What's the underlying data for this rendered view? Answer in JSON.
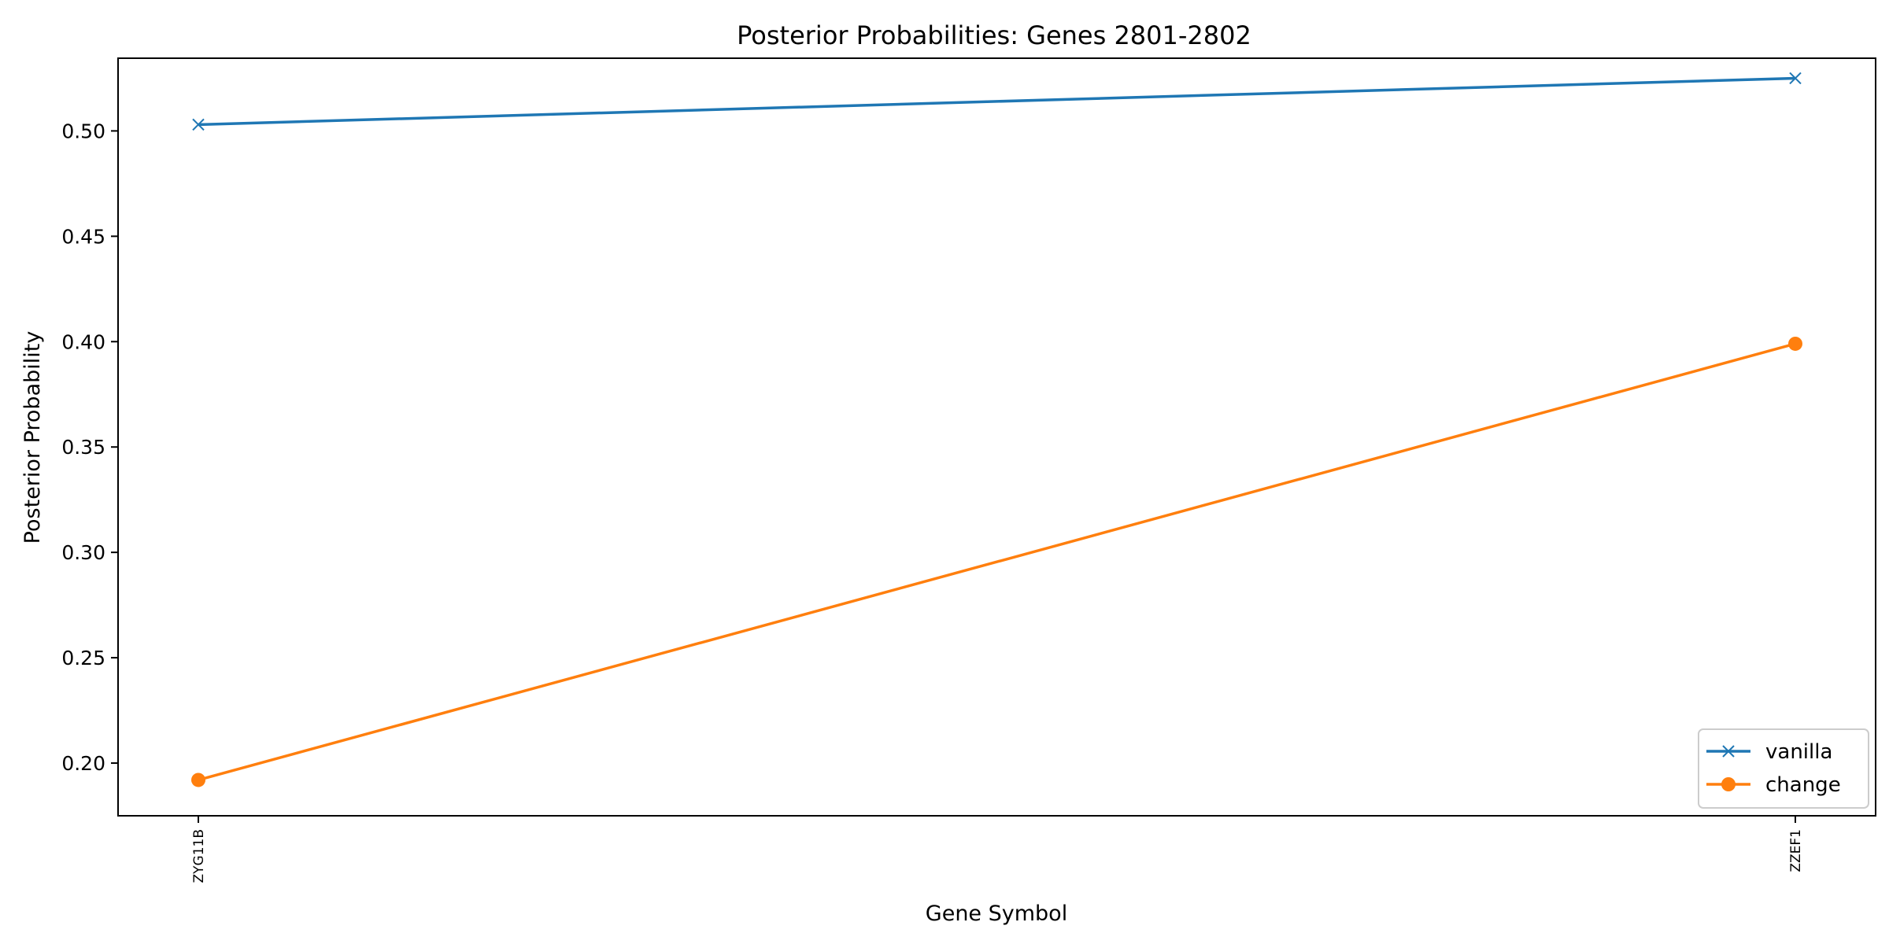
{
  "chart_data": {
    "type": "line",
    "title": "Posterior Probabilities: Genes 2801-2802",
    "xlabel": "Gene Symbol",
    "ylabel": "Posterior Probability",
    "categories": [
      "ZYG11B",
      "ZZEF1"
    ],
    "series": [
      {
        "name": "vanilla",
        "values": [
          0.503,
          0.525
        ],
        "color": "#1f77b4",
        "marker": "x"
      },
      {
        "name": "change",
        "values": [
          0.192,
          0.399
        ],
        "color": "#ff7f0e",
        "marker": "o"
      }
    ],
    "ylim": [
      0.175,
      0.5345
    ],
    "yticks": [
      "0.20",
      "0.25",
      "0.30",
      "0.35",
      "0.40",
      "0.45",
      "0.50"
    ],
    "grid": false,
    "legend_position": "lower-right"
  }
}
